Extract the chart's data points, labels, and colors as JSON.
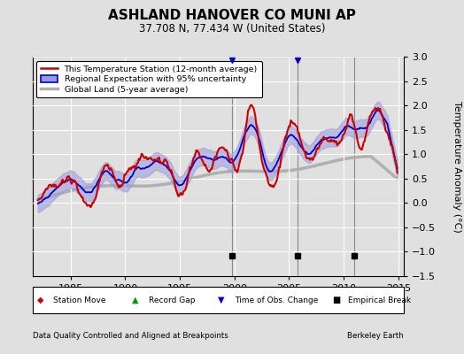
{
  "title": "ASHLAND HANOVER CO MUNI AP",
  "subtitle": "37.708 N, 77.434 W (United States)",
  "ylabel": "Temperature Anomaly (°C)",
  "footer_left": "Data Quality Controlled and Aligned at Breakpoints",
  "footer_right": "Berkeley Earth",
  "xlim": [
    1981.5,
    2015.5
  ],
  "ylim": [
    -1.5,
    3.0
  ],
  "yticks": [
    -1.5,
    -1.0,
    -0.5,
    0.0,
    0.5,
    1.0,
    1.5,
    2.0,
    2.5,
    3.0
  ],
  "xticks": [
    1985,
    1990,
    1995,
    2000,
    2005,
    2010,
    2015
  ],
  "bg_color": "#e0e0e0",
  "plot_bg_color": "#e0e0e0",
  "station_color": "#cc0000",
  "regional_color": "#0000cc",
  "regional_fill_color": "#9999dd",
  "global_color": "#b0b0b0",
  "legend_items": [
    "This Temperature Station (12-month average)",
    "Regional Expectation with 95% uncertainty",
    "Global Land (5-year average)"
  ],
  "empirical_breaks": [
    1999.75,
    2005.75,
    2011.0
  ],
  "tobs_changes": [
    1999.75,
    2005.75
  ],
  "station_moves": [],
  "record_gaps": []
}
